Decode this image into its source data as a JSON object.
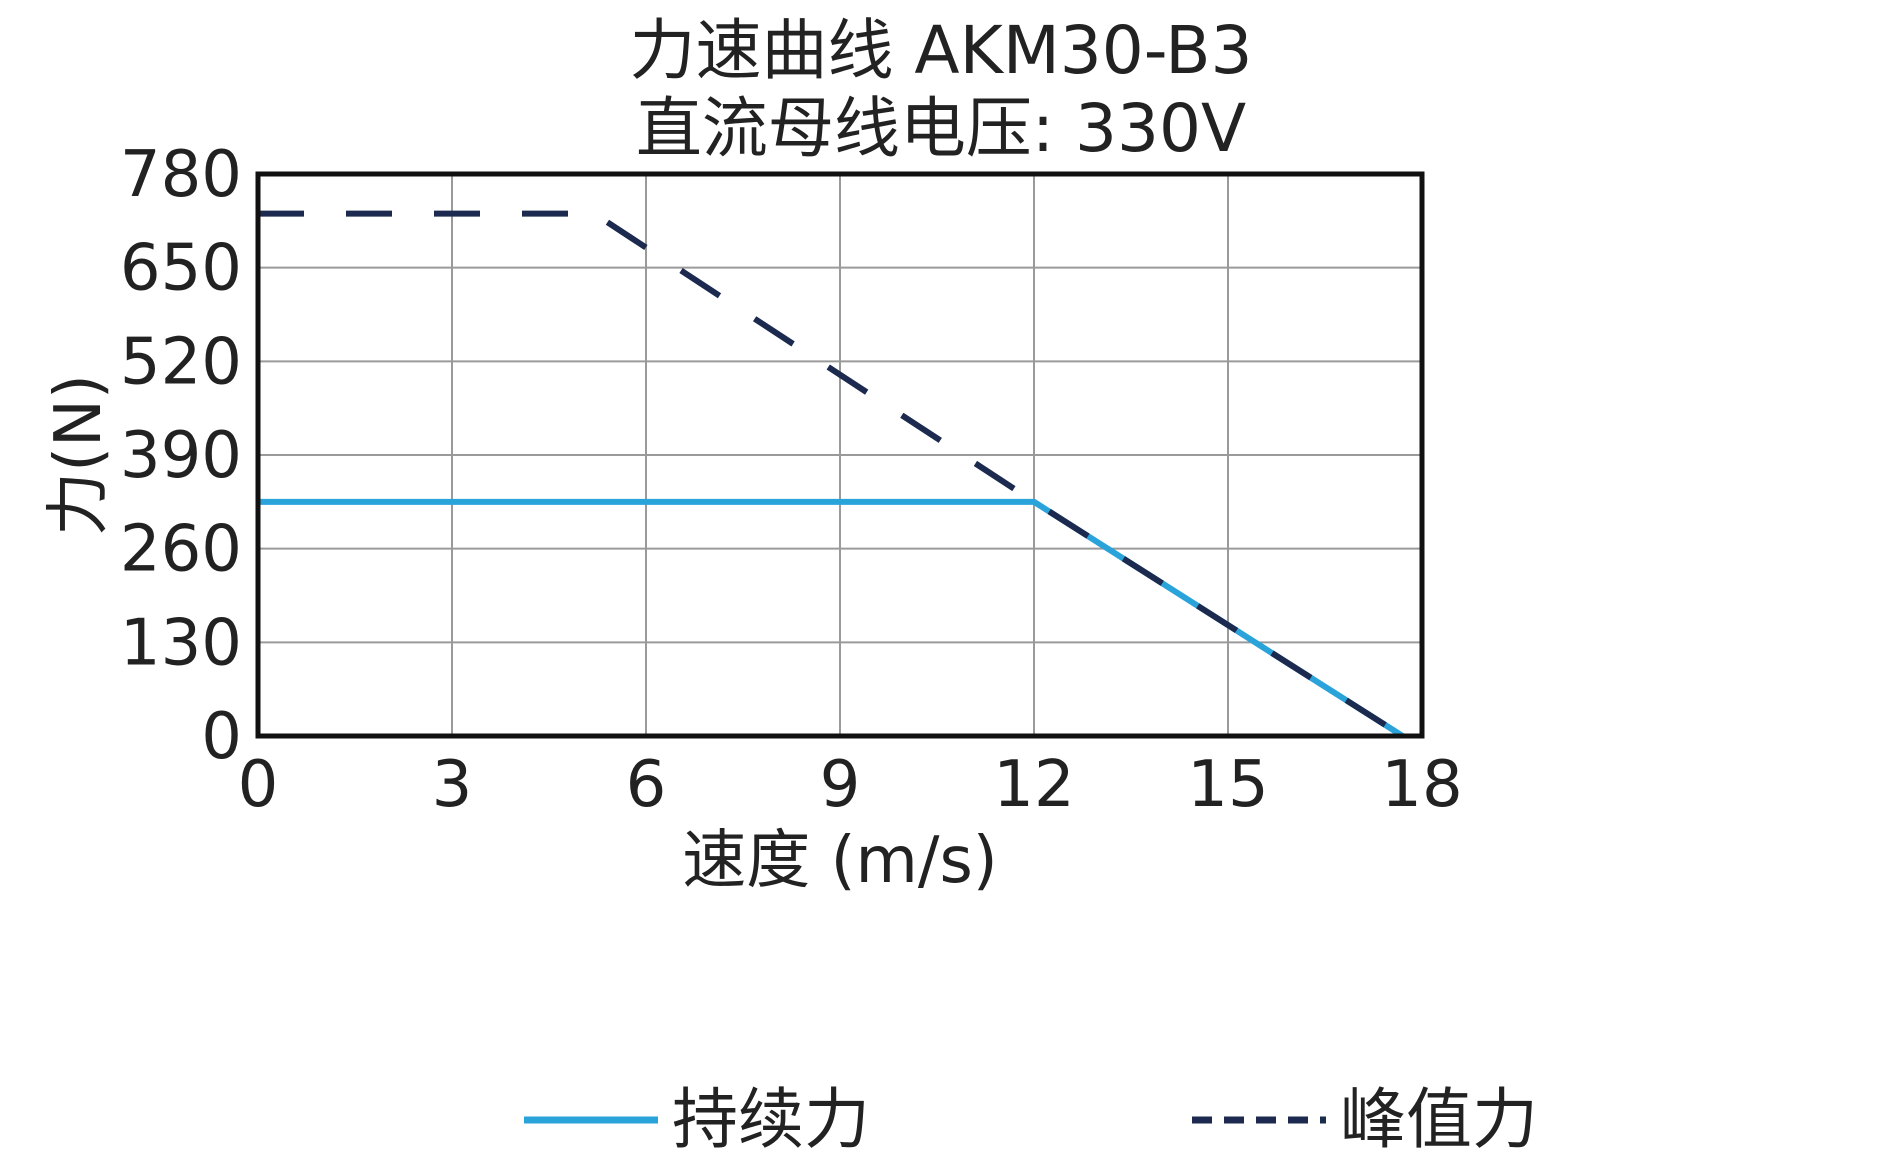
{
  "chart_data": {
    "type": "line",
    "title": "力速曲线 AKM30-B3",
    "subtitle": "直流母线电压: 330V",
    "xlabel": "速度 (m/s)",
    "ylabel": "力(N)",
    "xlim": [
      0,
      18
    ],
    "ylim": [
      0,
      780
    ],
    "xticks": [
      0,
      3,
      6,
      9,
      12,
      15,
      18
    ],
    "yticks": [
      0,
      130,
      260,
      390,
      520,
      650,
      780
    ],
    "grid": true,
    "legend_position": "bottom",
    "series": [
      {
        "name": "持续力",
        "style": "solid",
        "color": "#2aa3db",
        "x": [
          0,
          12.0,
          17.7
        ],
        "y": [
          325,
          325,
          0
        ]
      },
      {
        "name": "峰值力",
        "style": "dashed",
        "color": "#1b2a4e",
        "x": [
          0,
          5.2,
          12.0,
          17.7
        ],
        "y": [
          725,
          725,
          325,
          0
        ]
      }
    ]
  }
}
